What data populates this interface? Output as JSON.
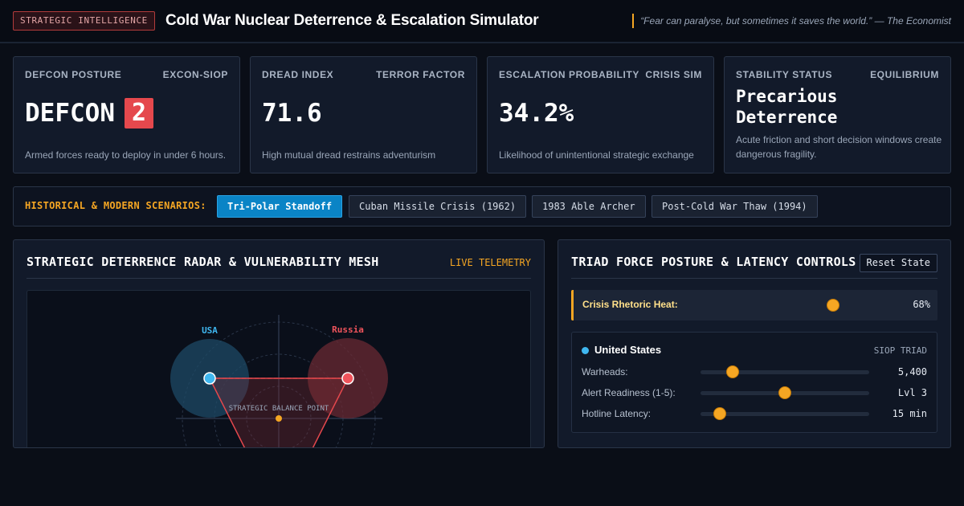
{
  "header": {
    "badge": "STRATEGIC INTELLIGENCE",
    "title": "Cold War Nuclear Deterrence & Escalation Simulator",
    "quote": "“Fear can paralyse, but sometimes it saves the world.” — The Economist"
  },
  "cards": {
    "defcon": {
      "label": "DEFCON POSTURE",
      "tag": "EXCON-SIOP",
      "prefix": "DEFCON",
      "level": "2",
      "desc": "Armed forces ready to deploy in under 6 hours."
    },
    "dread": {
      "label": "DREAD INDEX",
      "tag": "TERROR FACTOR",
      "value": "71.6",
      "desc": "High mutual dread restrains adventurism"
    },
    "escalation": {
      "label": "ESCALATION PROBABILITY",
      "tag": "CRISIS SIM",
      "value": "34.2%",
      "desc": "Likelihood of unintentional strategic exchange"
    },
    "stability": {
      "label": "STABILITY STATUS",
      "tag": "EQUILIBRIUM",
      "value": "Precarious Deterrence",
      "desc": "Acute friction and short decision windows create dangerous fragility."
    }
  },
  "scenarios": {
    "label": "HISTORICAL & MODERN SCENARIOS:",
    "items": [
      {
        "label": "Tri-Polar Standoff",
        "active": true
      },
      {
        "label": "Cuban Missile Crisis (1962)",
        "active": false
      },
      {
        "label": "1983 Able Archer",
        "active": false
      },
      {
        "label": "Post-Cold War Thaw (1994)",
        "active": false
      }
    ]
  },
  "radar": {
    "title": "STRATEGIC DETERRENCE RADAR & VULNERABILITY MESH",
    "status": "LIVE TELEMETRY",
    "usa_label": "USA",
    "russia_label": "Russia",
    "center_label": "STRATEGIC BALANCE POINT",
    "colors": {
      "usa": "#3fb7f0",
      "russia": "#f0545c",
      "balance": "#f5a623"
    }
  },
  "controls": {
    "title": "TRIAD FORCE POSTURE & LATENCY CONTROLS",
    "reset_label": "Reset State",
    "heat": {
      "label": "Crisis Rhetoric Heat:",
      "value": "68%",
      "level": 0.68
    },
    "nation": {
      "name": "United States",
      "tag": "SIOP TRIAD",
      "rows": [
        {
          "label": "Warheads:",
          "value": "5,400",
          "level": 0.19
        },
        {
          "label": "Alert Readiness (1-5):",
          "value": "Lvl 3",
          "level": 0.5
        },
        {
          "label": "Hotline Latency:",
          "value": "15 min",
          "level": 0.115
        }
      ]
    }
  }
}
